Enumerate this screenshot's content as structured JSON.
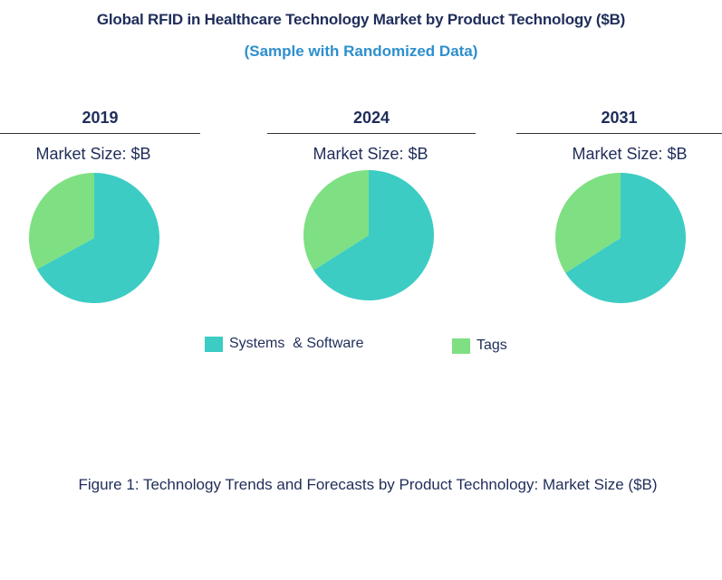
{
  "title": "Global RFID in Healthcare Technology Market by Product Technology ($B)",
  "subtitle": "(Sample with Randomized Data)",
  "colors": {
    "systems": "#3cccc4",
    "tags": "#7ee082",
    "title": "#1f2d5a",
    "subtitle": "#2e8fce"
  },
  "legend": [
    {
      "label": "Systems  & Software",
      "color": "#3cccc4"
    },
    {
      "label": "Tags",
      "color": "#7ee082"
    }
  ],
  "caption": "Figure 1: Technology Trends and Forecasts by Product Technology: Market Size ($B)",
  "chart_data": [
    {
      "type": "pie",
      "title": "2019",
      "subtitle": "Market Size: $B",
      "categories": [
        "Systems  & Software",
        "Tags"
      ],
      "values": [
        67,
        33
      ]
    },
    {
      "type": "pie",
      "title": "2024",
      "subtitle": "Market Size: $B",
      "categories": [
        "Systems  & Software",
        "Tags"
      ],
      "values": [
        66,
        34
      ]
    },
    {
      "type": "pie",
      "title": "2031",
      "subtitle": "Market Size: $B",
      "categories": [
        "Systems  & Software",
        "Tags"
      ],
      "values": [
        66,
        34
      ]
    }
  ]
}
